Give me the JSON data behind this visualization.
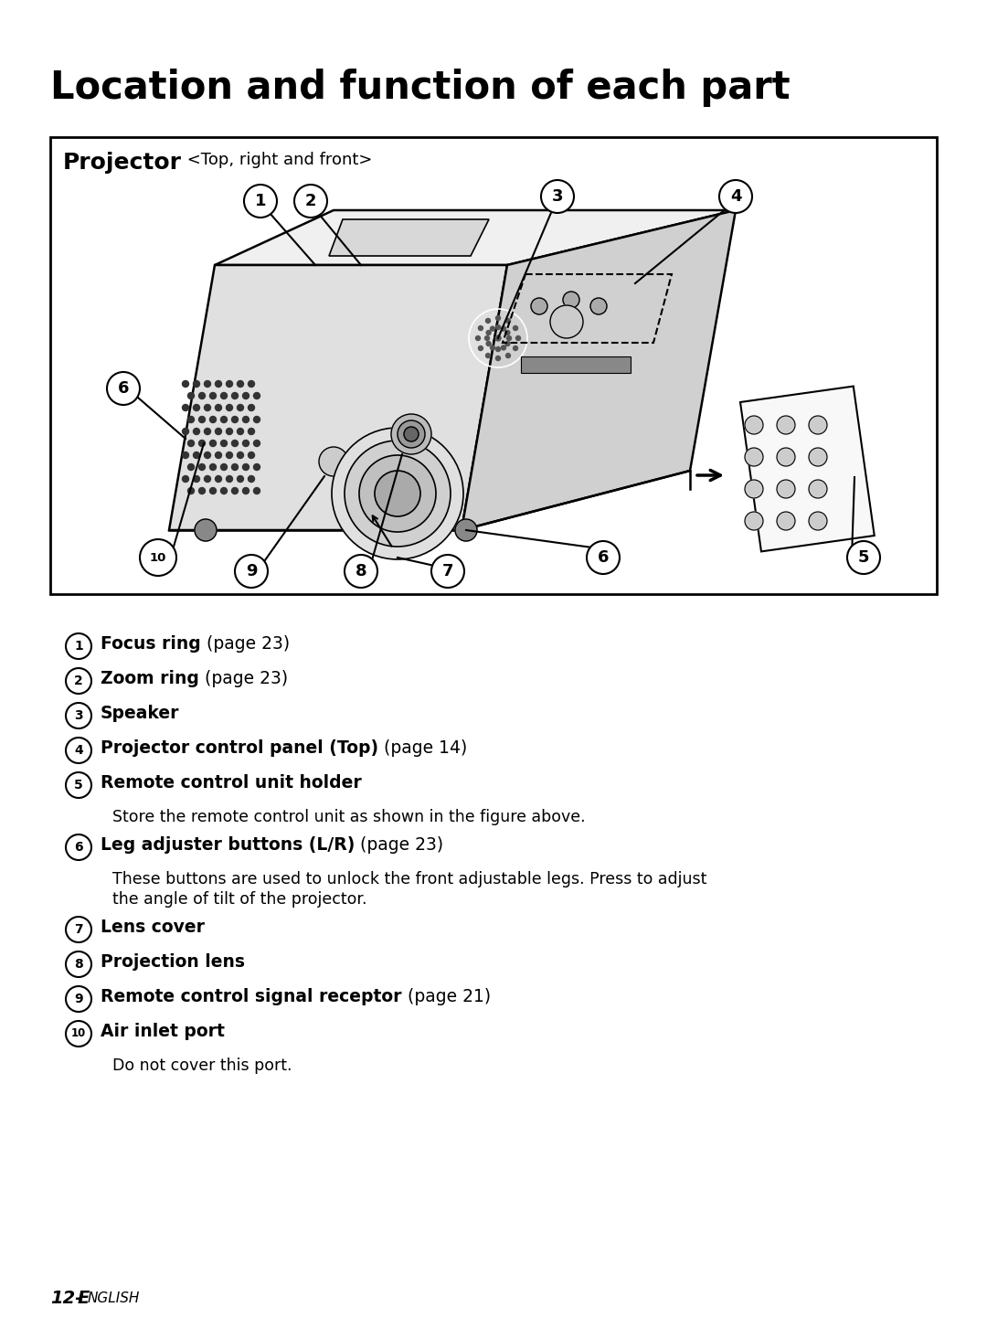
{
  "title": "Location and function of each part",
  "box_title": "Projector",
  "box_subtitle": " <Top, right and front>",
  "items": [
    {
      "num": "1",
      "bold": "Focus ring",
      "suffix": " (page 23)",
      "desc": ""
    },
    {
      "num": "2",
      "bold": "Zoom ring",
      "suffix": " (page 23)",
      "desc": ""
    },
    {
      "num": "3",
      "bold": "Speaker",
      "suffix": "",
      "desc": ""
    },
    {
      "num": "4",
      "bold": "Projector control panel (Top)",
      "suffix": " (page 14)",
      "desc": ""
    },
    {
      "num": "5",
      "bold": "Remote control unit holder",
      "suffix": "",
      "desc": "Store the remote control unit as shown in the figure above."
    },
    {
      "num": "6",
      "bold": "Leg adjuster buttons (L/R)",
      "suffix": " (page 23)",
      "desc": "These buttons are used to unlock the front adjustable legs. Press to adjust\nthe angle of tilt of the projector."
    },
    {
      "num": "7",
      "bold": "Lens cover",
      "suffix": "",
      "desc": ""
    },
    {
      "num": "8",
      "bold": "Projection lens",
      "suffix": "",
      "desc": ""
    },
    {
      "num": "9",
      "bold": "Remote control signal receptor",
      "suffix": " (page 21)",
      "desc": ""
    },
    {
      "num": "10",
      "bold": "Air inlet port",
      "suffix": "",
      "desc": "Do not cover this port."
    }
  ],
  "footer_num": "12-",
  "footer_word": "E",
  "footer_rest": "NGLISH",
  "bg_color": "#ffffff"
}
